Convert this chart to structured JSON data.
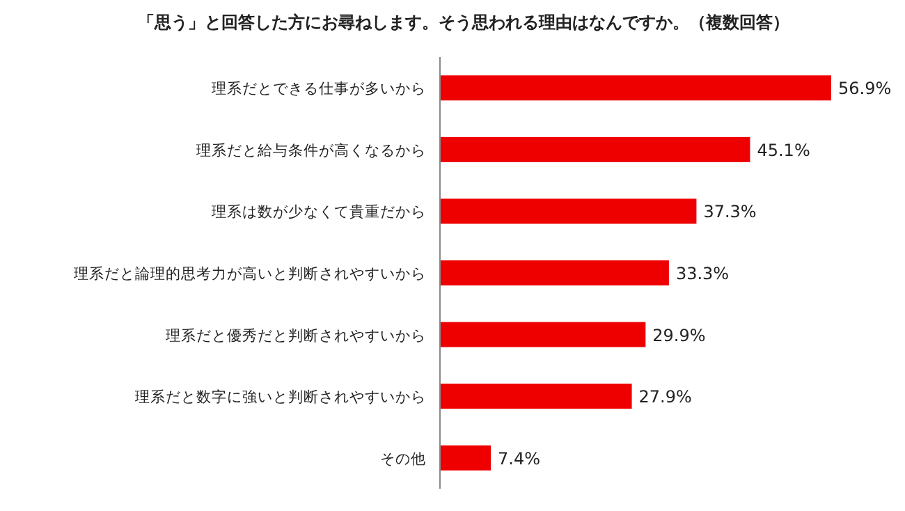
{
  "chart_data": {
    "type": "bar",
    "orientation": "horizontal",
    "title": "「思う」と回答した方にお尋ねします。そう思われる理由はなんですか。（複数回答）",
    "categories": [
      "理系だとできる仕事が多いから",
      "理系だと給与条件が高くなるから",
      "理系は数が少なくて貴重だから",
      "理系だと論理的思考力が高いと判断されやすいから",
      "理系だと優秀だと判断されやすいから",
      "理系だと数字に強いと判断されやすいから",
      "その他"
    ],
    "values": [
      56.9,
      45.1,
      37.3,
      33.3,
      29.9,
      27.9,
      7.4
    ],
    "value_labels": [
      "56.9%",
      "45.1%",
      "37.3%",
      "33.3%",
      "29.9%",
      "27.9%",
      "7.4%"
    ],
    "color": "#ee0000"
  }
}
